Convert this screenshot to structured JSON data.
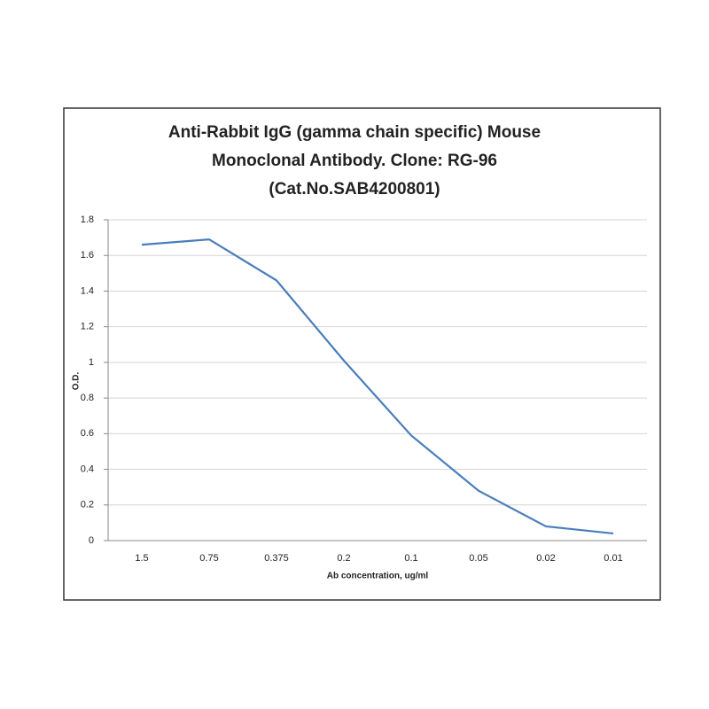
{
  "chart_data": {
    "type": "line",
    "title": [
      "Anti-Rabbit IgG (gamma chain specific) Mouse",
      "Monoclonal Antibody. Clone: RG-96",
      "(Cat.No.SAB4200801)"
    ],
    "x_label": "Ab concentration, ug/ml",
    "y_label": "O.D.",
    "categories": [
      "1.5",
      "0.75",
      "0.375",
      "0.2",
      "0.1",
      "0.05",
      "0.02",
      "0.01"
    ],
    "series": [
      {
        "name": "O.D.",
        "color": "#4a7ebb",
        "values": [
          1.66,
          1.69,
          1.46,
          1.01,
          0.59,
          0.28,
          0.08,
          0.04
        ]
      }
    ],
    "ylim": [
      0,
      1.8
    ],
    "yticks": [
      0,
      0.2,
      0.4,
      0.6,
      0.8,
      1,
      1.2,
      1.4,
      1.6,
      1.8
    ],
    "grid": true
  }
}
